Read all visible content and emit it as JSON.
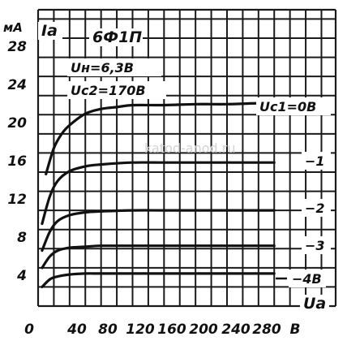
{
  "chart_data": {
    "type": "line",
    "title": "6Ф1П",
    "conditions": [
      "Uн=6,3В",
      "Uс2=170В"
    ],
    "y_unit": "мА",
    "ylabel": "Iа",
    "xlabel": "Uа",
    "x_ticks": [
      "0",
      "40",
      "80",
      "120",
      "160",
      "200",
      "240",
      "280",
      "В"
    ],
    "y_ticks": [
      "4",
      "8",
      "12",
      "16",
      "20",
      "24",
      "28"
    ],
    "xlim": [
      0,
      300
    ],
    "ylim": [
      0,
      31
    ],
    "watermark": "katod-anod.ru",
    "series": [
      {
        "name": "Uс1=0В",
        "x": [
          10,
          20,
          30,
          40,
          60,
          80,
          100,
          120,
          160,
          200,
          240,
          280,
          300
        ],
        "y": [
          13.8,
          16.5,
          18.0,
          18.9,
          20.1,
          20.6,
          20.8,
          21.0,
          21.0,
          21.1,
          21.1,
          21.2,
          21.2
        ]
      },
      {
        "name": "−1",
        "x": [
          5,
          15,
          25,
          40,
          60,
          80,
          120,
          160,
          200,
          240,
          280,
          300
        ],
        "y": [
          8.6,
          11.5,
          13.1,
          14.1,
          14.6,
          14.8,
          15.0,
          15.0,
          15.0,
          15.0,
          15.0,
          15.0
        ]
      },
      {
        "name": "−2",
        "x": [
          5,
          15,
          25,
          40,
          60,
          80,
          120,
          160,
          200,
          240,
          280,
          300
        ],
        "y": [
          5.8,
          7.8,
          8.9,
          9.5,
          9.8,
          9.9,
          10.0,
          10.0,
          10.0,
          10.0,
          10.0,
          10.0
        ]
      },
      {
        "name": "−3",
        "x": [
          5,
          15,
          25,
          40,
          60,
          80,
          120,
          160,
          200,
          240,
          280,
          300
        ],
        "y": [
          4.0,
          5.2,
          5.8,
          6.1,
          6.2,
          6.3,
          6.3,
          6.3,
          6.3,
          6.3,
          6.3,
          6.3
        ]
      },
      {
        "name": "−4В",
        "x": [
          5,
          15,
          25,
          40,
          60,
          80,
          120,
          160,
          200,
          240,
          280,
          300
        ],
        "y": [
          2.0,
          2.8,
          3.1,
          3.3,
          3.4,
          3.4,
          3.4,
          3.4,
          3.4,
          3.4,
          3.4,
          3.4
        ]
      }
    ]
  }
}
